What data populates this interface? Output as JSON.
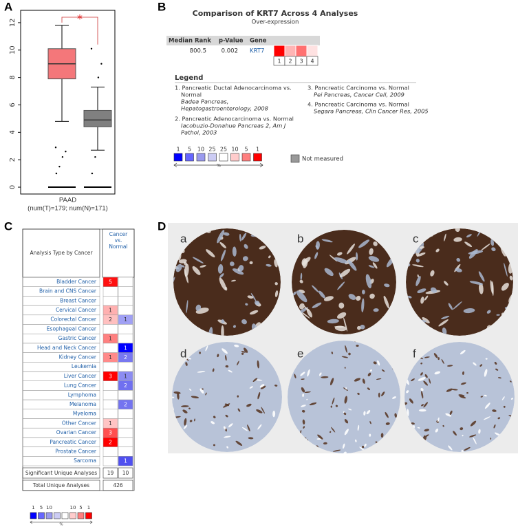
{
  "panel_labels": [
    "A",
    "B",
    "C",
    "D"
  ],
  "chart_data": {
    "type": "box",
    "categories": [
      "PAAD"
    ],
    "category_note": "(num(T)=179; num(N)=171)",
    "significance": "*",
    "ylim": [
      -0.5,
      12.9
    ],
    "yticks": [
      0,
      2,
      4,
      6,
      8,
      10,
      12
    ],
    "series": [
      {
        "color": "#f4777a",
        "whisker_low": 4.8,
        "q1": 7.9,
        "median": 9.0,
        "q3": 10.1,
        "whisker_high": 11.8,
        "points": [
          2.9,
          2.6,
          2.2,
          1.5,
          1.0,
          0
        ]
      },
      {
        "color": "#808080",
        "whisker_low": 2.7,
        "q1": 4.4,
        "median": 4.9,
        "q3": 5.6,
        "whisker_high": 7.3,
        "points": [
          10.1,
          9.0,
          8.0,
          2.2,
          1.0,
          0
        ]
      }
    ]
  },
  "panel_b": {
    "title": "Comparison of KRT7 Across 4 Analyses",
    "subtitle": "Over-expression",
    "headers": [
      "Median Rank",
      "p-Value",
      "Gene"
    ],
    "row": [
      "800.5",
      "0.002",
      "KRT7"
    ],
    "analyses": [
      "1",
      "2",
      "3",
      "4"
    ],
    "analysis_colors": [
      "#ff0000",
      "#ffb4b4",
      "#ff7070",
      "#ffe2e2"
    ],
    "legend_title": "Legend",
    "legend_items": [
      {
        "title_lines": [
          "1. Pancreatic Ductal Adenocarcinoma vs.",
          "Normal"
        ],
        "source_lines": [
          "Badea Pancreas,",
          "Hepatogastroenterology, 2008"
        ]
      },
      {
        "title_lines": [
          "2. Pancreatic Adenocarcinoma vs. Normal"
        ],
        "source_lines": [
          "Iacobuzio-Donahue Pancreas 2, Am J",
          "Pathol, 2003"
        ]
      },
      {
        "title_lines": [
          "3. Pancreatic Carcinoma vs. Normal"
        ],
        "source_lines": [
          "Pei Pancreas, Cancer Cell, 2009"
        ]
      },
      {
        "title_lines": [
          "4. Pancreatic Carcinoma vs. Normal"
        ],
        "source_lines": [
          "Segara Pancreas, Clin Cancer Res, 2005"
        ]
      }
    ],
    "scale_labels": [
      "1",
      "5",
      "10",
      "25",
      "25",
      "10",
      "5",
      "1"
    ],
    "scale_colors": [
      "#0000ff",
      "#6666ff",
      "#9a9aee",
      "#ccccf4",
      "#ffffff",
      "#ffcccc",
      "#ff7f7f",
      "#ff0000"
    ],
    "scale_unit": "%",
    "not_measured": "Not measured"
  },
  "panel_c": {
    "row_header": "Analysis Type by Cancer",
    "column_header": [
      "Cancer",
      "vs.",
      "Normal"
    ],
    "rows": [
      {
        "name": "Bladder Cancer",
        "up": "5",
        "up_color": "#ff1010",
        "down": null,
        "down_color": null
      },
      {
        "name": "Brain and CNS Cancer",
        "up": null,
        "up_color": null,
        "down": null,
        "down_color": null
      },
      {
        "name": "Breast Cancer",
        "up": null,
        "up_color": null,
        "down": null,
        "down_color": null
      },
      {
        "name": "Cervical Cancer",
        "up": "1",
        "up_color": "#ffb0b0",
        "down": null,
        "down_color": null
      },
      {
        "name": "Colorectal Cancer",
        "up": "2",
        "up_color": "#ffc0c0",
        "down": "1",
        "down_color": "#a0a0f4"
      },
      {
        "name": "Esophageal Cancer",
        "up": null,
        "up_color": null,
        "down": null,
        "down_color": null
      },
      {
        "name": "Gastric Cancer",
        "up": "1",
        "up_color": "#ff8080",
        "down": null,
        "down_color": null
      },
      {
        "name": "Head and Neck Cancer",
        "up": null,
        "up_color": null,
        "down": "1",
        "down_color": "#0000ff"
      },
      {
        "name": "Kidney Cancer",
        "up": "1",
        "up_color": "#ff8a8a",
        "down": "2",
        "down_color": "#7878f0"
      },
      {
        "name": "Leukemia",
        "up": null,
        "up_color": null,
        "down": null,
        "down_color": null
      },
      {
        "name": "Liver Cancer",
        "up": "3",
        "up_color": "#ff0000",
        "down": "1",
        "down_color": "#8c8cf2"
      },
      {
        "name": "Lung Cancer",
        "up": null,
        "up_color": null,
        "down": "2",
        "down_color": "#7070f0"
      },
      {
        "name": "Lymphoma",
        "up": null,
        "up_color": null,
        "down": null,
        "down_color": null
      },
      {
        "name": "Melanoma",
        "up": null,
        "up_color": null,
        "down": "2",
        "down_color": "#7474f0"
      },
      {
        "name": "Myeloma",
        "up": null,
        "up_color": null,
        "down": null,
        "down_color": null
      },
      {
        "name": "Other Cancer",
        "up": "1",
        "up_color": "#ffc4c4",
        "down": null,
        "down_color": null
      },
      {
        "name": "Ovarian Cancer",
        "up": "3",
        "up_color": "#ff5050",
        "down": null,
        "down_color": null
      },
      {
        "name": "Pancreatic Cancer",
        "up": "2",
        "up_color": "#ff0000",
        "down": null,
        "down_color": null
      },
      {
        "name": "Prostate Cancer",
        "up": null,
        "up_color": null,
        "down": null,
        "down_color": null
      },
      {
        "name": "Sarcoma",
        "up": null,
        "up_color": null,
        "down": "1",
        "down_color": "#5050f0"
      }
    ],
    "significant_label": "Significant Unique Analyses",
    "significant": [
      "19",
      "10"
    ],
    "total_label": "Total Unique Analyses",
    "total": "426",
    "scale_labels": [
      "1",
      "5",
      "10",
      "10",
      "5",
      "1"
    ],
    "scale_colors": [
      "#0000ff",
      "#6666ff",
      "#9a9aee",
      "#ccccf4",
      "#ffffff",
      "#ffcccc",
      "#ff7f7f",
      "#ff0000"
    ],
    "scale_unit": "%"
  },
  "panel_d": {
    "images": [
      "a",
      "b",
      "c",
      "d",
      "e",
      "f"
    ]
  }
}
